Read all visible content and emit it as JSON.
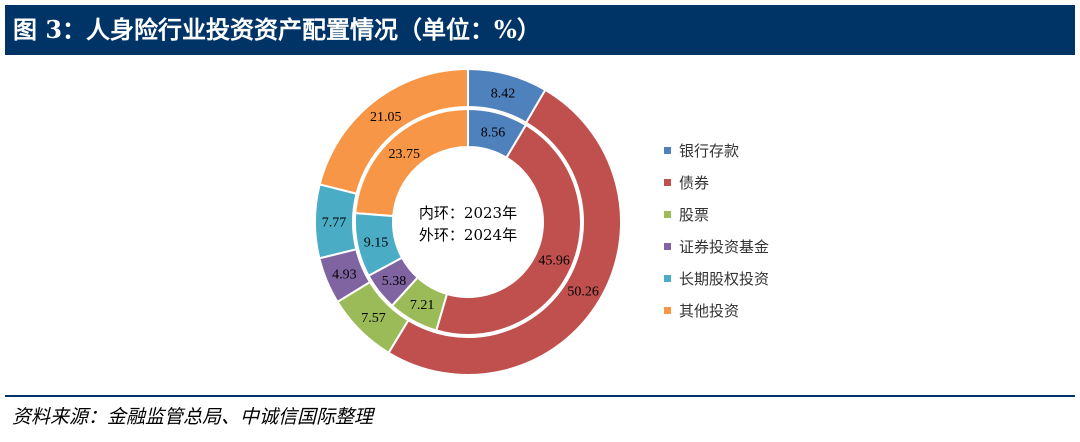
{
  "title": "图 3：人身险行业投资资产配置情况（单位：%）",
  "source": "资料来源：金融监管总局、中诚信国际整理",
  "chart_data": {
    "type": "donut",
    "title": "图 3：人身险行业投资资产配置情况（单位：%）",
    "center_labels": [
      "内环：2023年",
      "外环：2024年"
    ],
    "categories": [
      "银行存款",
      "债券",
      "股票",
      "证券投资基金",
      "长期股权投资",
      "其他投资"
    ],
    "colors": [
      "#4F81BD",
      "#C0504D",
      "#9BBB59",
      "#8064A2",
      "#4BACC6",
      "#F79646"
    ],
    "series": [
      {
        "name": "2023年",
        "ring": "inner",
        "values": [
          8.56,
          45.96,
          7.21,
          5.38,
          9.15,
          23.75
        ]
      },
      {
        "name": "2024年",
        "ring": "outer",
        "values": [
          8.42,
          50.26,
          7.57,
          4.93,
          7.77,
          21.05
        ]
      }
    ],
    "legend": "right"
  }
}
